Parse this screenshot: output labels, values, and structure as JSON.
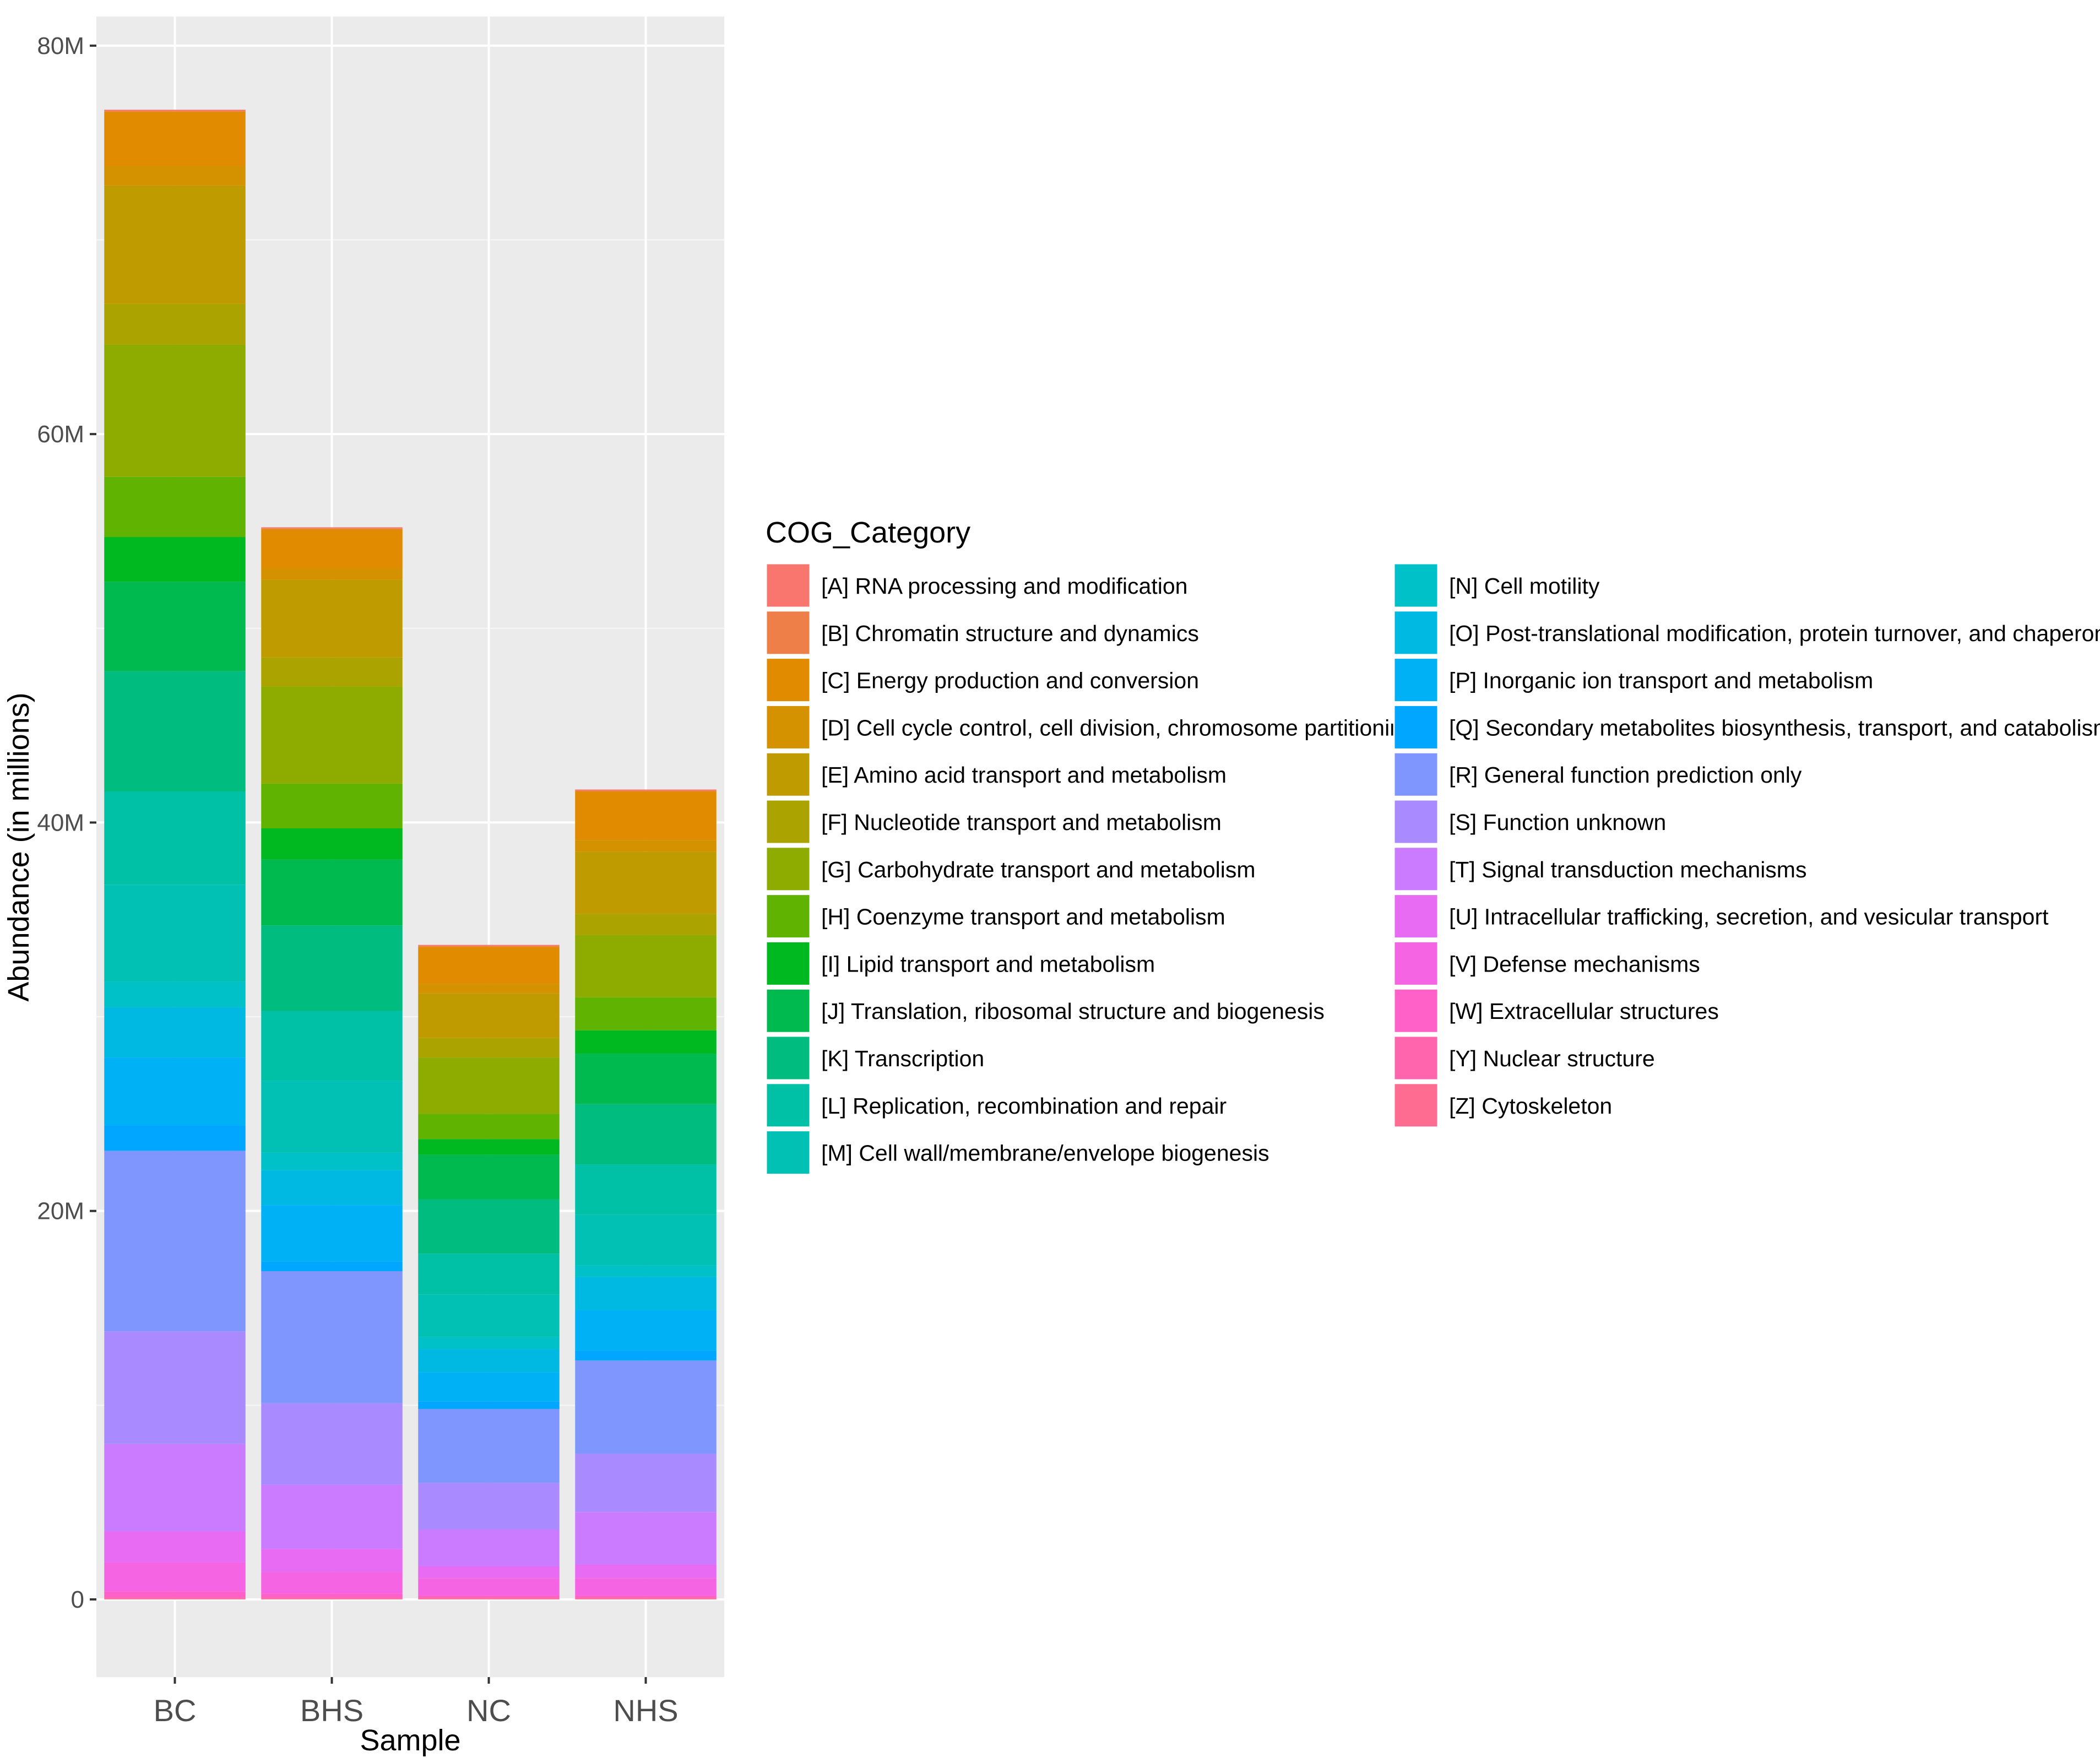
{
  "chart_data": {
    "type": "bar",
    "stacked": true,
    "title": "",
    "xlabel": "Sample",
    "ylabel": "Abundance (in millions)",
    "categories": [
      "BC",
      "BHS",
      "NC",
      "NHS"
    ],
    "ylim": [
      -4,
      81.5
    ],
    "yticks": [
      0,
      20,
      40,
      60,
      80
    ],
    "ytick_labels": [
      "0",
      "20M",
      "40M",
      "60M",
      "80M"
    ],
    "legend_title": "COG_Category",
    "legend_position": "right",
    "series": [
      {
        "name": "[A] RNA processing and modification",
        "color": "#F8766D",
        "values": [
          0.05,
          0.05,
          0.05,
          0.05
        ]
      },
      {
        "name": "[B] Chromatin structure and dynamics",
        "color": "#EF7F48",
        "values": [
          0.05,
          0.05,
          0.05,
          0.05
        ]
      },
      {
        "name": "[C] Energy production and conversion",
        "color": "#E08B00",
        "values": [
          2.8,
          2.0,
          1.9,
          2.5
        ]
      },
      {
        "name": "[D] Cell cycle control, cell division, chromosome partitioning",
        "color": "#D49100",
        "values": [
          1.0,
          0.6,
          0.5,
          0.6
        ]
      },
      {
        "name": "[E] Amino acid transport and metabolism",
        "color": "#C09B00",
        "values": [
          6.1,
          4.0,
          2.3,
          3.2
        ]
      },
      {
        "name": "[F] Nucleotide transport and metabolism",
        "color": "#AAA300",
        "values": [
          2.1,
          1.5,
          1.0,
          1.1
        ]
      },
      {
        "name": "[G] Carbohydrate transport and metabolism",
        "color": "#8EAB00",
        "values": [
          6.8,
          5.0,
          2.9,
          3.2
        ]
      },
      {
        "name": "[H] Coenzyme transport and metabolism",
        "color": "#60B300",
        "values": [
          3.1,
          2.3,
          1.3,
          1.7
        ]
      },
      {
        "name": "[I] Lipid transport and metabolism",
        "color": "#00B81F",
        "values": [
          2.3,
          1.6,
          0.8,
          1.2
        ]
      },
      {
        "name": "[J] Translation, ribosomal structure and biogenesis",
        "color": "#00B94F",
        "values": [
          4.6,
          3.4,
          2.3,
          2.6
        ]
      },
      {
        "name": "[K] Transcription",
        "color": "#00BC7F",
        "values": [
          6.2,
          4.4,
          2.8,
          3.1
        ]
      },
      {
        "name": "[L] Replication, recombination and repair",
        "color": "#00C0A6",
        "values": [
          4.8,
          3.6,
          2.1,
          2.6
        ]
      },
      {
        "name": "[M] Cell wall/membrane/envelope biogenesis",
        "color": "#00C1B4",
        "values": [
          5.0,
          3.7,
          2.2,
          2.6
        ]
      },
      {
        "name": "[N] Cell motility",
        "color": "#00C0C8",
        "values": [
          1.3,
          0.9,
          0.6,
          0.6
        ]
      },
      {
        "name": "[O] Post-translational modification, protein turnover, and chaperones",
        "color": "#00B9E3",
        "values": [
          2.6,
          1.8,
          1.2,
          1.7
        ]
      },
      {
        "name": "[P] Inorganic ion transport and metabolism",
        "color": "#00B1F6",
        "values": [
          3.5,
          2.9,
          1.5,
          2.1
        ]
      },
      {
        "name": "[Q] Secondary metabolites biosynthesis, transport, and catabolism",
        "color": "#00A6FF",
        "values": [
          1.3,
          0.5,
          0.4,
          0.5
        ]
      },
      {
        "name": "[R] General function prediction only",
        "color": "#7F96FF",
        "values": [
          9.3,
          6.8,
          3.8,
          4.8
        ]
      },
      {
        "name": "[S] Function unknown",
        "color": "#A98BFF",
        "values": [
          5.8,
          4.2,
          2.4,
          3.0
        ]
      },
      {
        "name": "[T] Signal transduction mechanisms",
        "color": "#CB7BFF",
        "values": [
          4.5,
          3.3,
          1.9,
          2.7
        ]
      },
      {
        "name": "[U] Intracellular trafficking, secretion, and vesicular transport",
        "color": "#E76BF3",
        "values": [
          1.6,
          1.2,
          0.6,
          0.7
        ]
      },
      {
        "name": "[V] Defense mechanisms",
        "color": "#F564E3",
        "values": [
          1.5,
          1.1,
          0.9,
          0.9
        ]
      },
      {
        "name": "[W] Extracellular structures",
        "color": "#FF61C9",
        "values": [
          0.3,
          0.2,
          0.1,
          0.1
        ]
      },
      {
        "name": "[Y] Nuclear structure",
        "color": "#FF65AD",
        "values": [
          0.05,
          0.05,
          0.05,
          0.05
        ]
      },
      {
        "name": "[Z] Cytoskeleton",
        "color": "#FF6C91",
        "values": [
          0.05,
          0.05,
          0.05,
          0.05
        ]
      }
    ]
  }
}
